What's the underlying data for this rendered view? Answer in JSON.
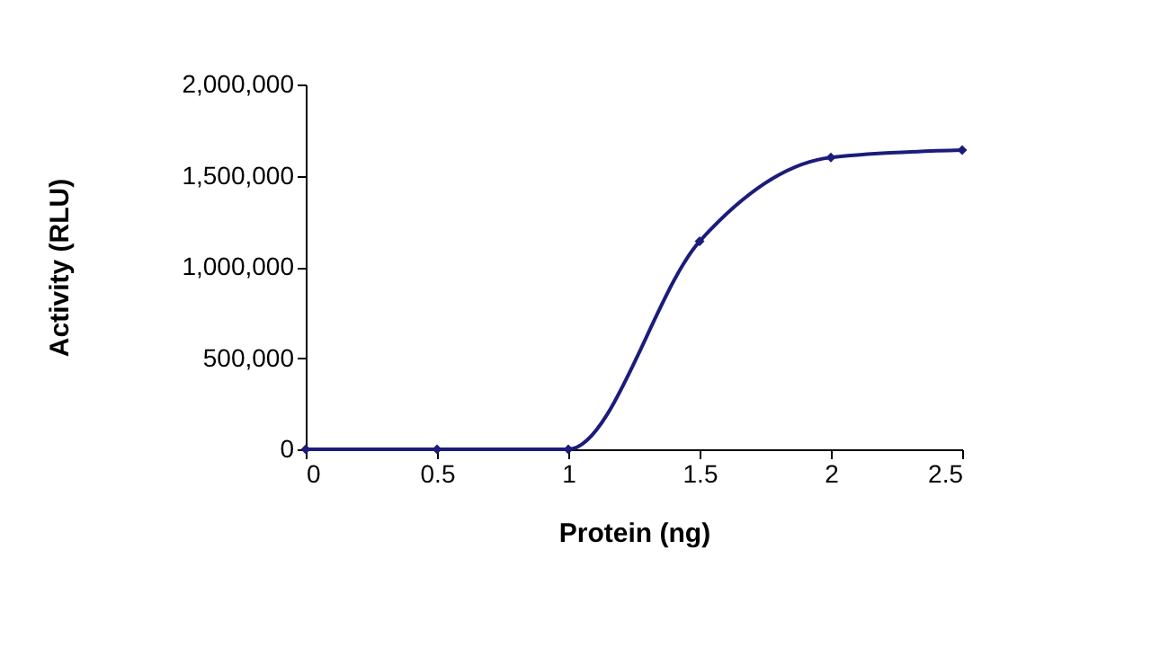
{
  "chart_data": {
    "type": "line",
    "xlabel": "Protein (ng)",
    "ylabel": "Activity (RLU)",
    "x": [
      0,
      0.5,
      1,
      1.5,
      2,
      2.5
    ],
    "series": [
      {
        "color": "#1c1c7c",
        "values": [
          0,
          0,
          0,
          1140000,
          1600000,
          1640000
        ]
      }
    ],
    "xlim": [
      0,
      2.5
    ],
    "xticks": [
      0,
      0.5,
      1,
      1.5,
      2,
      2.5
    ],
    "ylim": [
      0,
      2000000
    ],
    "yticks": [
      0,
      {
        "value": 500000,
        "label": "500,000"
      },
      {
        "value": 1000000,
        "label": "1,000,000"
      },
      {
        "value": 1500000,
        "label": "1,500,000"
      },
      {
        "value": 2000000,
        "label": "2,000,000"
      }
    ],
    "grid": false,
    "legend": false,
    "marker": "diamond",
    "line_style": "solid"
  }
}
